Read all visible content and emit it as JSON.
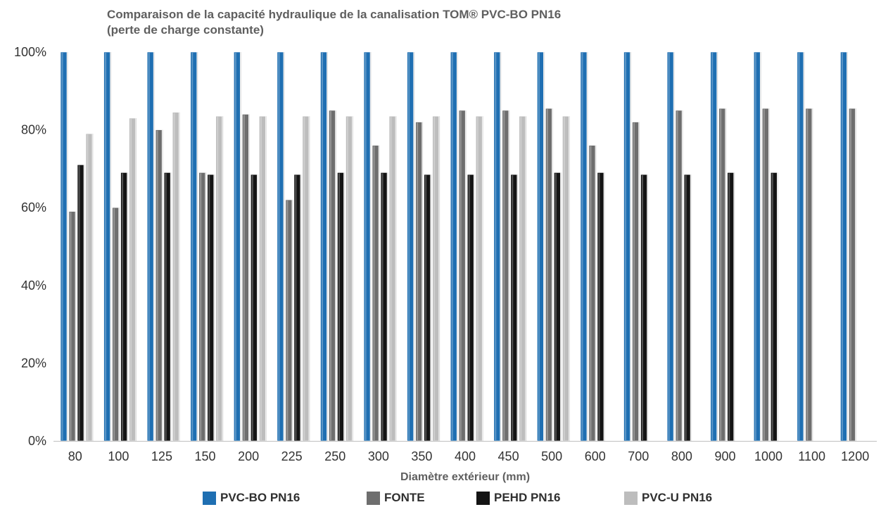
{
  "chart_data": {
    "type": "bar",
    "title_line1": "Comparaison de la capacité hydraulique de la canalisation TOM® PVC-BO PN16",
    "title_line2": "(perte de charge constante)",
    "xlabel": "Diamètre extérieur (mm)",
    "ylabel": "",
    "ylim": [
      0,
      1
    ],
    "yticks": [
      "0%",
      "20%",
      "40%",
      "60%",
      "80%",
      "100%"
    ],
    "grid": false,
    "legend_position": "bottom",
    "categories": [
      "80",
      "100",
      "125",
      "150",
      "200",
      "225",
      "250",
      "300",
      "350",
      "400",
      "450",
      "500",
      "600",
      "700",
      "800",
      "900",
      "1000",
      "1100",
      "1200"
    ],
    "series": [
      {
        "name": "PVC-BO PN16",
        "color": "#1f6fb2",
        "values": [
          1.0,
          1.0,
          1.0,
          1.0,
          1.0,
          1.0,
          1.0,
          1.0,
          1.0,
          1.0,
          1.0,
          1.0,
          1.0,
          1.0,
          1.0,
          1.0,
          1.0,
          1.0,
          1.0
        ]
      },
      {
        "name": "FONTE",
        "color": "#6e6e6e",
        "values": [
          0.59,
          0.6,
          0.8,
          0.69,
          0.84,
          0.62,
          0.85,
          0.76,
          0.82,
          0.85,
          0.85,
          0.855,
          0.76,
          0.82,
          0.85,
          0.855,
          0.855,
          0.855,
          0.855
        ]
      },
      {
        "name": "PEHD PN16",
        "color": "#141414",
        "values": [
          0.71,
          0.69,
          0.69,
          0.685,
          0.685,
          0.685,
          0.69,
          0.69,
          0.685,
          0.685,
          0.685,
          0.69,
          0.69,
          0.685,
          0.685,
          0.69,
          0.69,
          null,
          null
        ]
      },
      {
        "name": "PVC-U PN16",
        "color": "#bdbdbd",
        "values": [
          0.79,
          0.83,
          0.845,
          0.835,
          0.835,
          0.835,
          0.835,
          0.835,
          0.835,
          0.835,
          0.835,
          0.835,
          null,
          null,
          null,
          null,
          null,
          null,
          null
        ]
      }
    ]
  }
}
